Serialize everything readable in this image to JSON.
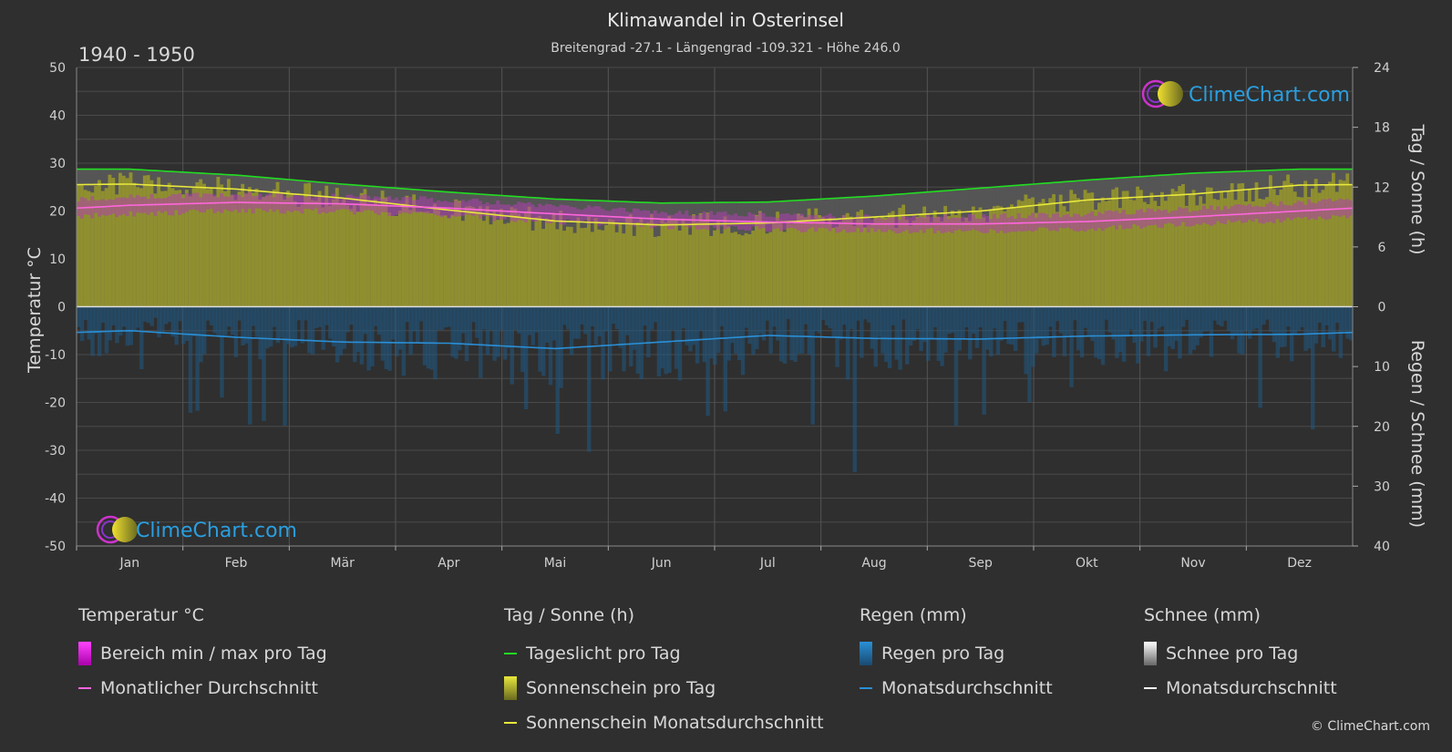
{
  "chart_data": {
    "type": "area",
    "title": "Klimawandel in Osterinsel",
    "subtitle": "Breitengrad -27.1 - Längengrad -109.321 - Höhe 246.0",
    "period": "1940 - 1950",
    "categories": [
      "Jan",
      "Feb",
      "Mär",
      "Apr",
      "Mai",
      "Jun",
      "Jul",
      "Aug",
      "Sep",
      "Okt",
      "Nov",
      "Dez"
    ],
    "y_left": {
      "label": "Temperatur °C",
      "range": [
        -50,
        50
      ],
      "ticks": [
        "50",
        "40",
        "30",
        "20",
        "10",
        "0",
        "-10",
        "-20",
        "-30",
        "-40",
        "-50"
      ]
    },
    "y_right_top": {
      "label": "Tag / Sonne (h)",
      "range": [
        0,
        24
      ],
      "ticks": [
        "24",
        "18",
        "12",
        "6",
        "0"
      ]
    },
    "y_right_bottom": {
      "label": "Regen / Schnee (mm)",
      "range": [
        0,
        40
      ],
      "ticks": [
        "0",
        "10",
        "20",
        "30",
        "40"
      ]
    },
    "series": [
      {
        "name": "Tageslicht pro Tag",
        "axis": "hours",
        "color": "#22dd22",
        "values": [
          13.8,
          13.2,
          12.3,
          11.5,
          10.8,
          10.4,
          10.5,
          11.1,
          11.9,
          12.7,
          13.4,
          13.8
        ]
      },
      {
        "name": "Sonnenschein Monatsdurchschnitt",
        "axis": "hours",
        "color": "#e8e83c",
        "values": [
          12.3,
          11.8,
          10.9,
          9.7,
          8.6,
          8.2,
          8.4,
          9.0,
          9.6,
          10.7,
          11.3,
          12.2
        ]
      },
      {
        "name": "Monatlicher Durchschnitt",
        "axis": "temperature",
        "color": "#ff66dd",
        "values": [
          21.2,
          21.8,
          21.5,
          20.6,
          19.4,
          18.3,
          17.7,
          17.3,
          17.3,
          17.8,
          18.8,
          20.0
        ]
      },
      {
        "name": "Monatsdurchschnitt Regen",
        "axis": "mm",
        "color": "#2a8fd6",
        "values": [
          4.0,
          5.1,
          5.9,
          6.1,
          7.0,
          5.9,
          4.8,
          5.3,
          5.4,
          4.9,
          4.7,
          4.6
        ]
      },
      {
        "name": "Monatsdurchschnitt Schnee",
        "axis": "mm",
        "color": "#ffffff",
        "values": [
          0,
          0,
          0,
          0,
          0,
          0,
          0,
          0,
          0,
          0,
          0,
          0
        ]
      }
    ],
    "temp_range": {
      "min": [
        19.4,
        20.0,
        20.0,
        19.0,
        17.8,
        16.8,
        16.2,
        15.9,
        15.8,
        16.3,
        17.2,
        18.3
      ],
      "max": [
        23.0,
        23.5,
        23.2,
        22.3,
        21.0,
        19.8,
        19.2,
        18.8,
        18.8,
        19.4,
        20.4,
        21.8
      ]
    },
    "grid": true
  },
  "logo_text": "ClimeChart.com",
  "legend": {
    "temp": {
      "title": "Temperatur °C",
      "items": [
        "Bereich min / max pro Tag",
        "Monatlicher Durchschnitt"
      ]
    },
    "sun": {
      "title": "Tag / Sonne (h)",
      "items": [
        "Tageslicht pro Tag",
        "Sonnenschein pro Tag",
        "Sonnenschein Monatsdurchschnitt"
      ]
    },
    "rain": {
      "title": "Regen (mm)",
      "items": [
        "Regen pro Tag",
        "Monatsdurchschnitt"
      ]
    },
    "snow": {
      "title": "Schnee (mm)",
      "items": [
        "Schnee pro Tag",
        "Monatsdurchschnitt"
      ]
    }
  },
  "colors": {
    "background": "#2f2f2f",
    "sun_fill": "#9a9a2a",
    "daylight_fill": "#555555",
    "rain_fill": "#1f5a85"
  },
  "copyright": "© ClimeChart.com"
}
